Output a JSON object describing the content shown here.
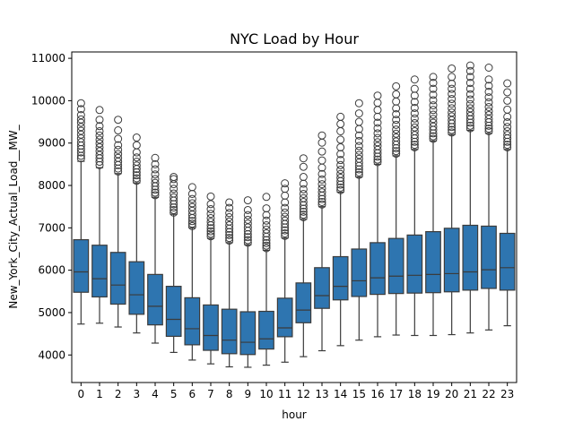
{
  "chart_data": {
    "type": "box",
    "title": "NYC Load by Hour",
    "xlabel": "hour",
    "ylabel": "New_York_City_Actual_Load__MW_",
    "ylim": [
      3350,
      11150
    ],
    "yticks": [
      4000,
      5000,
      6000,
      7000,
      8000,
      9000,
      10000,
      11000
    ],
    "categories": [
      "0",
      "1",
      "2",
      "3",
      "4",
      "5",
      "6",
      "7",
      "8",
      "9",
      "10",
      "11",
      "12",
      "13",
      "14",
      "15",
      "16",
      "17",
      "18",
      "19",
      "20",
      "21",
      "22",
      "23"
    ],
    "grid": false,
    "box_color": "#2e75b0",
    "edge_color": "#3b3b3b",
    "boxes": [
      {
        "whislo": 4730,
        "q1": 5480,
        "med": 5960,
        "q3": 6720,
        "whishi": 8570,
        "fliers": [
          8640,
          8700,
          8780,
          8860,
          8940,
          9020,
          9110,
          9200,
          9290,
          9380,
          9480,
          9560,
          9660,
          9800,
          9940
        ]
      },
      {
        "whislo": 4750,
        "q1": 5370,
        "med": 5800,
        "q3": 6590,
        "whishi": 8420,
        "fliers": [
          8480,
          8560,
          8640,
          8720,
          8810,
          8900,
          8990,
          9080,
          9180,
          9280,
          9400,
          9550,
          9780
        ]
      },
      {
        "whislo": 4660,
        "q1": 5200,
        "med": 5650,
        "q3": 6420,
        "whishi": 8280,
        "fliers": [
          8330,
          8400,
          8480,
          8560,
          8650,
          8740,
          8840,
          8950,
          9100,
          9300,
          9550
        ]
      },
      {
        "whislo": 4520,
        "q1": 4960,
        "med": 5420,
        "q3": 6200,
        "whishi": 8060,
        "fliers": [
          8110,
          8170,
          8240,
          8310,
          8390,
          8470,
          8560,
          8660,
          8780,
          8950,
          9130
        ]
      },
      {
        "whislo": 4280,
        "q1": 4710,
        "med": 5150,
        "q3": 5900,
        "whishi": 7720,
        "fliers": [
          7770,
          7830,
          7900,
          7980,
          8060,
          8150,
          8260,
          8380,
          8500,
          8650
        ]
      },
      {
        "whislo": 4060,
        "q1": 4440,
        "med": 4840,
        "q3": 5620,
        "whishi": 7320,
        "fliers": [
          7360,
          7420,
          7480,
          7560,
          7640,
          7720,
          7810,
          7920,
          8030,
          8150,
          8200
        ]
      },
      {
        "whislo": 3880,
        "q1": 4240,
        "med": 4620,
        "q3": 5350,
        "whishi": 7000,
        "fliers": [
          7040,
          7100,
          7160,
          7230,
          7310,
          7400,
          7490,
          7580,
          7680,
          7800,
          7960
        ]
      },
      {
        "whislo": 3790,
        "q1": 4110,
        "med": 4460,
        "q3": 5180,
        "whishi": 6750,
        "fliers": [
          6800,
          6860,
          6920,
          6990,
          7060,
          7140,
          7230,
          7330,
          7440,
          7560,
          7740
        ]
      },
      {
        "whislo": 3720,
        "q1": 4030,
        "med": 4350,
        "q3": 5080,
        "whishi": 6650,
        "fliers": [
          6700,
          6760,
          6830,
          6900,
          6980,
          7060,
          7150,
          7250,
          7350,
          7470,
          7600
        ]
      },
      {
        "whislo": 3710,
        "q1": 4010,
        "med": 4300,
        "q3": 5020,
        "whishi": 6600,
        "fliers": [
          6650,
          6710,
          6780,
          6850,
          6930,
          7010,
          7100,
          7190,
          7300,
          7420,
          7650
        ]
      },
      {
        "whislo": 3760,
        "q1": 4140,
        "med": 4380,
        "q3": 5030,
        "whishi": 6470,
        "fliers": [
          6520,
          6580,
          6640,
          6710,
          6790,
          6870,
          6960,
          7060,
          7170,
          7300,
          7460,
          7730
        ]
      },
      {
        "whislo": 3830,
        "q1": 4430,
        "med": 4640,
        "q3": 5340,
        "whishi": 6760,
        "fliers": [
          6810,
          6870,
          6940,
          7010,
          7090,
          7170,
          7260,
          7360,
          7470,
          7600,
          7760,
          7920,
          8050
        ]
      },
      {
        "whislo": 3960,
        "q1": 4760,
        "med": 5060,
        "q3": 5700,
        "whishi": 7200,
        "fliers": [
          7250,
          7310,
          7380,
          7450,
          7530,
          7610,
          7700,
          7800,
          7910,
          8040,
          8200,
          8440,
          8640
        ]
      },
      {
        "whislo": 4100,
        "q1": 5100,
        "med": 5400,
        "q3": 6060,
        "whishi": 7500,
        "fliers": [
          7550,
          7610,
          7680,
          7760,
          7840,
          7930,
          8030,
          8140,
          8270,
          8420,
          8590,
          8800,
          9010,
          9180
        ]
      },
      {
        "whislo": 4220,
        "q1": 5300,
        "med": 5620,
        "q3": 6320,
        "whishi": 7840,
        "fliers": [
          7890,
          7950,
          8020,
          8100,
          8180,
          8270,
          8370,
          8480,
          8600,
          8740,
          8900,
          9080,
          9280,
          9450,
          9620
        ]
      },
      {
        "whislo": 4350,
        "q1": 5380,
        "med": 5750,
        "q3": 6500,
        "whishi": 8200,
        "fliers": [
          8250,
          8310,
          8380,
          8460,
          8540,
          8630,
          8720,
          8820,
          8930,
          9050,
          9180,
          9330,
          9500,
          9700,
          9940
        ]
      },
      {
        "whislo": 4430,
        "q1": 5430,
        "med": 5820,
        "q3": 6650,
        "whishi": 8500,
        "fliers": [
          8550,
          8610,
          8680,
          8760,
          8840,
          8930,
          9020,
          9120,
          9230,
          9350,
          9480,
          9620,
          9780,
          9950,
          10120
        ]
      },
      {
        "whislo": 4470,
        "q1": 5450,
        "med": 5860,
        "q3": 6750,
        "whishi": 8700,
        "fliers": [
          8750,
          8810,
          8880,
          8960,
          9040,
          9130,
          9220,
          9320,
          9430,
          9550,
          9680,
          9820,
          9980,
          10150,
          10340
        ]
      },
      {
        "whislo": 4460,
        "q1": 5460,
        "med": 5880,
        "q3": 6830,
        "whishi": 8850,
        "fliers": [
          8900,
          8960,
          9030,
          9110,
          9190,
          9280,
          9370,
          9470,
          9580,
          9700,
          9830,
          9970,
          10120,
          10280,
          10500
        ]
      },
      {
        "whislo": 4460,
        "q1": 5470,
        "med": 5900,
        "q3": 6910,
        "whishi": 9050,
        "fliers": [
          9100,
          9160,
          9230,
          9310,
          9390,
          9480,
          9570,
          9670,
          9780,
          9890,
          10010,
          10140,
          10280,
          10420,
          10560
        ]
      },
      {
        "whislo": 4480,
        "q1": 5490,
        "med": 5920,
        "q3": 6990,
        "whishi": 9200,
        "fliers": [
          9250,
          9310,
          9380,
          9460,
          9540,
          9630,
          9720,
          9820,
          9930,
          10040,
          10160,
          10280,
          10400,
          10560,
          10760
        ]
      },
      {
        "whislo": 4520,
        "q1": 5530,
        "med": 5960,
        "q3": 7060,
        "whishi": 9300,
        "fliers": [
          9350,
          9410,
          9480,
          9560,
          9640,
          9730,
          9820,
          9920,
          10030,
          10150,
          10280,
          10420,
          10560,
          10700,
          10830
        ]
      },
      {
        "whislo": 4590,
        "q1": 5570,
        "med": 6010,
        "q3": 7040,
        "whishi": 9230,
        "fliers": [
          9280,
          9340,
          9410,
          9490,
          9570,
          9660,
          9750,
          9850,
          9960,
          10080,
          10210,
          10350,
          10500,
          10780
        ]
      },
      {
        "whislo": 4690,
        "q1": 5530,
        "med": 6060,
        "q3": 6870,
        "whishi": 8850,
        "fliers": [
          8900,
          8960,
          9030,
          9110,
          9190,
          9280,
          9380,
          9490,
          9620,
          9790,
          10000,
          10200,
          10410
        ]
      }
    ]
  }
}
